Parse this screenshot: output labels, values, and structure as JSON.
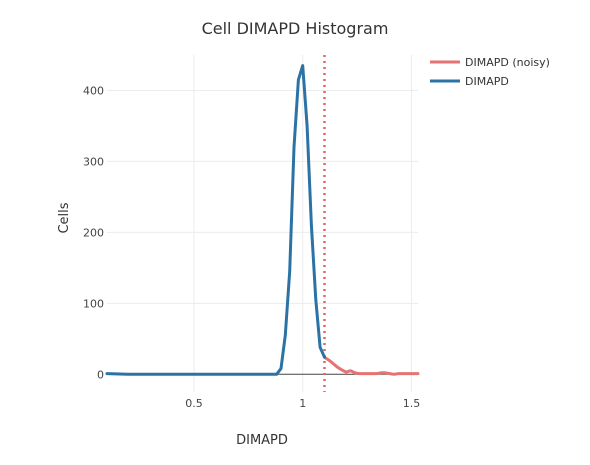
{
  "chart_data": {
    "type": "line",
    "title": "Cell DIMAPD Histogram",
    "xlabel": "DIMAPD",
    "ylabel": "Cells",
    "xlim": [
      0.1,
      1.53
    ],
    "ylim": [
      -25,
      450
    ],
    "x_ticks": [
      0.5,
      1,
      1.5
    ],
    "x_tick_labels": [
      "0.5",
      "1",
      "1.5"
    ],
    "y_ticks": [
      0,
      100,
      200,
      300,
      400
    ],
    "y_tick_labels": [
      "0",
      "100",
      "200",
      "300",
      "400"
    ],
    "grid": true,
    "legend_position": "top-right",
    "threshold": {
      "x": 1.1,
      "style": "dotted",
      "color": "#e06666"
    },
    "series": [
      {
        "name": "DIMAPD (noisy)",
        "color": "#e57373",
        "x": [
          1.1,
          1.12,
          1.14,
          1.16,
          1.18,
          1.2,
          1.22,
          1.24,
          1.26,
          1.28,
          1.3,
          1.32,
          1.34,
          1.36,
          1.38,
          1.4,
          1.42,
          1.44,
          1.46,
          1.48,
          1.5,
          1.53
        ],
        "y": [
          24,
          20,
          15,
          10,
          6,
          3,
          5,
          2,
          1,
          1,
          1,
          1,
          1,
          2,
          2,
          1,
          0,
          1,
          1,
          1,
          1,
          1
        ]
      },
      {
        "name": "DIMAPD",
        "color": "#2c73a5",
        "x": [
          0.1,
          0.2,
          0.3,
          0.4,
          0.5,
          0.6,
          0.7,
          0.8,
          0.88,
          0.9,
          0.92,
          0.94,
          0.96,
          0.98,
          1.0,
          1.02,
          1.04,
          1.06,
          1.08,
          1.1
        ],
        "y": [
          1,
          0,
          0,
          0,
          0,
          0,
          0,
          0,
          0,
          8,
          55,
          145,
          320,
          415,
          435,
          350,
          210,
          105,
          38,
          24
        ]
      }
    ]
  }
}
